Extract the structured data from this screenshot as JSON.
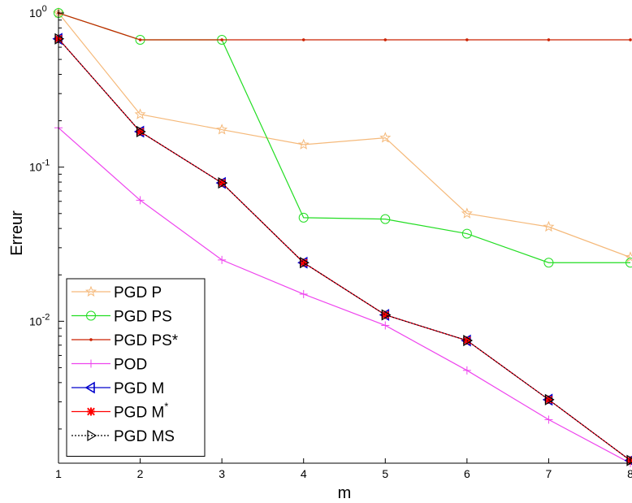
{
  "chart_data": {
    "type": "line",
    "xlabel": "m",
    "ylabel": "Erreur",
    "y_scale": "log",
    "xlim": [
      1,
      8
    ],
    "ylim": [
      0.0012,
      1.05
    ],
    "x_ticks": [
      "1",
      "2",
      "3",
      "4",
      "5",
      "6",
      "7",
      "8"
    ],
    "y_ticks": [
      {
        "value": 1,
        "base": "10",
        "exp": "0"
      },
      {
        "value": 0.1,
        "base": "10",
        "exp": "-1"
      },
      {
        "value": 0.01,
        "base": "10",
        "exp": "-2"
      }
    ],
    "legend_position": "bottom-left",
    "grid": false,
    "x": [
      1,
      2,
      3,
      4,
      5,
      6,
      7,
      8
    ],
    "series": [
      {
        "name": "PGD P",
        "color": "#f5b97a",
        "marker": "star",
        "values": [
          1.0,
          0.22,
          0.175,
          0.14,
          0.155,
          0.05,
          0.041,
          0.026
        ]
      },
      {
        "name": "PGD PS",
        "color": "#22dd22",
        "marker": "circle",
        "values": [
          1.0,
          0.67,
          0.67,
          0.047,
          0.046,
          0.037,
          0.024,
          0.024
        ]
      },
      {
        "name": "PGD PS*",
        "color": "#cc2200",
        "marker": "dot",
        "values": [
          1.0,
          0.67,
          0.67,
          0.67,
          0.67,
          0.67,
          0.67,
          0.67
        ]
      },
      {
        "name": "POD",
        "color": "#ee44ee",
        "marker": "plus",
        "values": [
          0.18,
          0.061,
          0.025,
          0.015,
          0.0094,
          0.0048,
          0.0023,
          0.0012
        ]
      },
      {
        "name": "PGD M",
        "color": "#0000cc",
        "marker": "triangle-left",
        "values": [
          0.68,
          0.17,
          0.079,
          0.024,
          0.011,
          0.0075,
          0.0031,
          0.00125
        ]
      },
      {
        "name": "PGD M",
        "name_sup": "*",
        "color": "#ff0000",
        "marker": "asterisk",
        "values": [
          0.68,
          0.17,
          0.079,
          0.024,
          0.011,
          0.0075,
          0.0031,
          0.00125
        ]
      },
      {
        "name": "PGD MS",
        "color": "#000000",
        "marker": "triangle-right",
        "dashed": true,
        "values": [
          0.68,
          0.17,
          0.079,
          0.024,
          0.011,
          0.0075,
          0.0031,
          0.00125
        ]
      }
    ]
  }
}
